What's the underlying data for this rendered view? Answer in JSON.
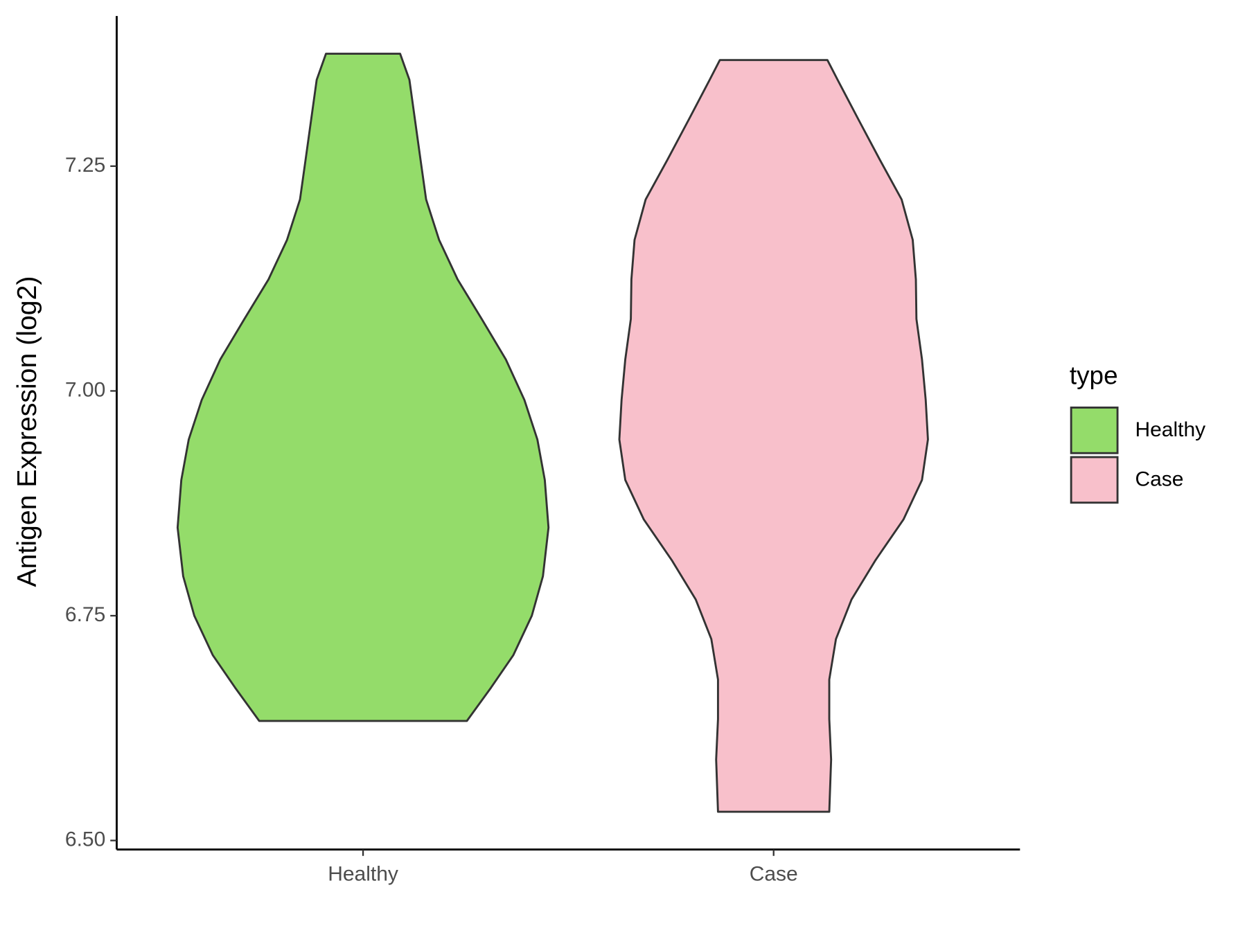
{
  "chart_data": {
    "type": "violin",
    "y_label": "Antigen Expression (log2)",
    "categories": [
      "Healthy",
      "Case"
    ],
    "series": [
      {
        "name": "Healthy",
        "color": "#94dc6a",
        "y": [
          7.375,
          7.346,
          7.257,
          7.213,
          7.168,
          7.124,
          7.08,
          7.035,
          6.99,
          6.946,
          6.901,
          6.848,
          6.794,
          6.75,
          6.706,
          6.67,
          6.633
        ],
        "density": [
          0.2,
          0.25,
          0.31,
          0.34,
          0.41,
          0.51,
          0.64,
          0.77,
          0.87,
          0.94,
          0.98,
          1.0,
          0.97,
          0.91,
          0.81,
          0.69,
          0.56
        ]
      },
      {
        "name": "Case",
        "color": "#f8c0cb",
        "y": [
          7.368,
          7.346,
          7.302,
          7.257,
          7.213,
          7.168,
          7.124,
          7.08,
          7.035,
          6.99,
          6.946,
          6.901,
          6.857,
          6.812,
          6.768,
          6.724,
          6.679,
          6.635,
          6.59,
          6.532
        ],
        "density": [
          0.29,
          0.345,
          0.457,
          0.573,
          0.69,
          0.75,
          0.767,
          0.77,
          0.8,
          0.82,
          0.832,
          0.8,
          0.7,
          0.55,
          0.42,
          0.336,
          0.3,
          0.3,
          0.31,
          0.3
        ]
      }
    ],
    "ylim": [
      6.49,
      7.417
    ],
    "yticks": [
      {
        "value": 6.5,
        "label": "6.50"
      },
      {
        "value": 6.75,
        "label": "6.75"
      },
      {
        "value": 7,
        "label": "7.00"
      },
      {
        "value": 7.25,
        "label": "7.25"
      }
    ],
    "legend": {
      "title": "type",
      "position": "right"
    }
  }
}
